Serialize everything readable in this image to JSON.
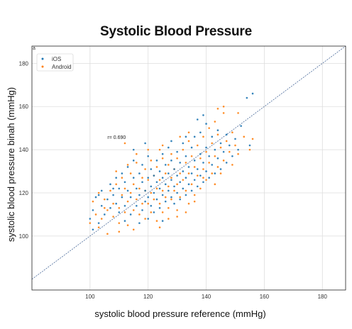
{
  "title": "Systolic Blood Pressure",
  "chart_data": {
    "type": "scatter",
    "panel_label": "a",
    "xlabel": "systolic blood pressure reference (mmHg)",
    "ylabel": "systolic blood pressure binah (mmHg)",
    "xlim": [
      80,
      188
    ],
    "ylim": [
      75,
      188
    ],
    "xticks": [
      100,
      120,
      140,
      160,
      180
    ],
    "yticks": [
      100,
      120,
      140,
      160,
      180
    ],
    "grid": true,
    "legend_position": "top-left",
    "identity_line": true,
    "annotation": "r= 0.690",
    "annotation_at": [
      106,
      145
    ],
    "series": [
      {
        "name": "iOS",
        "color": "#1f77b4",
        "points": [
          [
            100,
            108
          ],
          [
            101,
            112
          ],
          [
            101,
            103
          ],
          [
            102,
            118
          ],
          [
            103,
            106
          ],
          [
            104,
            114
          ],
          [
            104,
            121
          ],
          [
            105,
            110
          ],
          [
            106,
            117
          ],
          [
            107,
            124
          ],
          [
            107,
            113
          ],
          [
            108,
            119
          ],
          [
            109,
            127
          ],
          [
            109,
            115
          ],
          [
            110,
            122
          ],
          [
            110,
            111
          ],
          [
            111,
            129
          ],
          [
            111,
            118
          ],
          [
            112,
            125
          ],
          [
            112,
            114
          ],
          [
            113,
            121
          ],
          [
            113,
            132
          ],
          [
            114,
            118
          ],
          [
            114,
            110
          ],
          [
            115,
            127
          ],
          [
            115,
            135
          ],
          [
            116,
            122
          ],
          [
            116,
            114
          ],
          [
            117,
            129
          ],
          [
            117,
            119
          ],
          [
            118,
            133
          ],
          [
            118,
            125
          ],
          [
            118,
            112
          ],
          [
            119,
            121
          ],
          [
            119,
            116
          ],
          [
            120,
            137
          ],
          [
            120,
            127
          ],
          [
            120,
            118
          ],
          [
            120,
            108
          ],
          [
            121,
            131
          ],
          [
            121,
            123
          ],
          [
            121,
            114
          ],
          [
            122,
            128
          ],
          [
            122,
            120
          ],
          [
            122,
            111
          ],
          [
            123,
            135
          ],
          [
            123,
            125
          ],
          [
            123,
            117
          ],
          [
            124,
            130
          ],
          [
            124,
            122
          ],
          [
            124,
            113
          ],
          [
            125,
            138
          ],
          [
            125,
            127
          ],
          [
            125,
            119
          ],
          [
            126,
            133
          ],
          [
            126,
            124
          ],
          [
            126,
            116
          ],
          [
            127,
            141
          ],
          [
            127,
            129
          ],
          [
            127,
            121
          ],
          [
            128,
            135
          ],
          [
            128,
            126
          ],
          [
            128,
            118
          ],
          [
            129,
            131
          ],
          [
            129,
            123
          ],
          [
            129,
            115
          ],
          [
            130,
            139
          ],
          [
            130,
            128
          ],
          [
            130,
            120
          ],
          [
            131,
            134
          ],
          [
            131,
            125
          ],
          [
            131,
            117
          ],
          [
            132,
            143
          ],
          [
            132,
            130
          ],
          [
            132,
            122
          ],
          [
            133,
            137
          ],
          [
            133,
            127
          ],
          [
            133,
            119
          ],
          [
            134,
            132
          ],
          [
            134,
            124
          ],
          [
            135,
            141
          ],
          [
            135,
            129
          ],
          [
            135,
            121
          ],
          [
            136,
            146
          ],
          [
            136,
            135
          ],
          [
            136,
            126
          ],
          [
            137,
            131
          ],
          [
            137,
            123
          ],
          [
            138,
            148
          ],
          [
            138,
            138
          ],
          [
            138,
            128
          ],
          [
            139,
            134
          ],
          [
            139,
            125
          ],
          [
            140,
            152
          ],
          [
            140,
            141
          ],
          [
            140,
            130
          ],
          [
            141,
            137
          ],
          [
            141,
            127
          ],
          [
            142,
            146
          ],
          [
            142,
            133
          ],
          [
            143,
            140
          ],
          [
            143,
            129
          ],
          [
            144,
            149
          ],
          [
            144,
            136
          ],
          [
            145,
            143
          ],
          [
            145,
            131
          ],
          [
            146,
            139
          ],
          [
            147,
            147
          ],
          [
            147,
            134
          ],
          [
            148,
            142
          ],
          [
            149,
            137
          ],
          [
            150,
            145
          ],
          [
            151,
            140
          ],
          [
            152,
            151
          ],
          [
            154,
            164
          ],
          [
            155,
            142
          ],
          [
            156,
            166
          ],
          [
            117,
            106
          ],
          [
            112,
            107
          ],
          [
            125,
            107
          ],
          [
            108,
            122
          ],
          [
            103,
            119
          ],
          [
            115,
            140
          ],
          [
            119,
            143
          ],
          [
            128,
            144
          ],
          [
            133,
            146
          ],
          [
            137,
            154
          ],
          [
            139,
            156
          ]
        ]
      },
      {
        "name": "Android",
        "color": "#ff7f0e",
        "points": [
          [
            100,
            106
          ],
          [
            101,
            116
          ],
          [
            102,
            110
          ],
          [
            103,
            120
          ],
          [
            104,
            108
          ],
          [
            105,
            117
          ],
          [
            106,
            112
          ],
          [
            106,
            101
          ],
          [
            107,
            121
          ],
          [
            108,
            109
          ],
          [
            108,
            115
          ],
          [
            109,
            124
          ],
          [
            110,
            113
          ],
          [
            110,
            106
          ],
          [
            111,
            119
          ],
          [
            111,
            127
          ],
          [
            112,
            111
          ],
          [
            112,
            122
          ],
          [
            113,
            116
          ],
          [
            113,
            105
          ],
          [
            114,
            129
          ],
          [
            114,
            120
          ],
          [
            115,
            112
          ],
          [
            115,
            124
          ],
          [
            116,
            117
          ],
          [
            116,
            134
          ],
          [
            117,
            122
          ],
          [
            117,
            110
          ],
          [
            118,
            127
          ],
          [
            118,
            115
          ],
          [
            119,
            131
          ],
          [
            119,
            121
          ],
          [
            119,
            108
          ],
          [
            120,
            126
          ],
          [
            120,
            115
          ],
          [
            121,
            135
          ],
          [
            121,
            120
          ],
          [
            121,
            111
          ],
          [
            122,
            128
          ],
          [
            122,
            117
          ],
          [
            123,
            132
          ],
          [
            123,
            122
          ],
          [
            123,
            107
          ],
          [
            124,
            126
          ],
          [
            124,
            115
          ],
          [
            125,
            136
          ],
          [
            125,
            121
          ],
          [
            125,
            111
          ],
          [
            126,
            129
          ],
          [
            126,
            118
          ],
          [
            127,
            133
          ],
          [
            127,
            123
          ],
          [
            127,
            113
          ],
          [
            128,
            138
          ],
          [
            128,
            127
          ],
          [
            128,
            117
          ],
          [
            129,
            131
          ],
          [
            129,
            121
          ],
          [
            130,
            136
          ],
          [
            130,
            124
          ],
          [
            130,
            112
          ],
          [
            131,
            129
          ],
          [
            131,
            118
          ],
          [
            132,
            140
          ],
          [
            132,
            126
          ],
          [
            133,
            134
          ],
          [
            133,
            121
          ],
          [
            134,
            144
          ],
          [
            134,
            129
          ],
          [
            134,
            115
          ],
          [
            135,
            137
          ],
          [
            135,
            124
          ],
          [
            136,
            132
          ],
          [
            136,
            119
          ],
          [
            137,
            142
          ],
          [
            137,
            128
          ],
          [
            138,
            136
          ],
          [
            138,
            122
          ],
          [
            139,
            146
          ],
          [
            139,
            131
          ],
          [
            140,
            139
          ],
          [
            140,
            126
          ],
          [
            141,
            150
          ],
          [
            141,
            134
          ],
          [
            142,
            143
          ],
          [
            142,
            129
          ],
          [
            143,
            137
          ],
          [
            143,
            124
          ],
          [
            144,
            147
          ],
          [
            144,
            132
          ],
          [
            145,
            141
          ],
          [
            146,
            135
          ],
          [
            146,
            157
          ],
          [
            147,
            144
          ],
          [
            148,
            139
          ],
          [
            149,
            148
          ],
          [
            150,
            142
          ],
          [
            151,
            138
          ],
          [
            153,
            146
          ],
          [
            155,
            140
          ],
          [
            156,
            145
          ],
          [
            144,
            159
          ],
          [
            143,
            153
          ],
          [
            134,
            148
          ],
          [
            131,
            146
          ],
          [
            125,
            142
          ],
          [
            120,
            140
          ],
          [
            116,
            138
          ],
          [
            113,
            133
          ],
          [
            109,
            130
          ],
          [
            105,
            113
          ],
          [
            103,
            104
          ],
          [
            146,
            160
          ],
          [
            151,
            157
          ],
          [
            149,
            133
          ],
          [
            145,
            129
          ],
          [
            139,
            127
          ],
          [
            136,
            116
          ],
          [
            133,
            111
          ],
          [
            130,
            109
          ],
          [
            127,
            108
          ],
          [
            124,
            104
          ],
          [
            115,
            103
          ],
          [
            110,
            102
          ],
          [
            112,
            143
          ],
          [
            124,
            140
          ]
        ]
      }
    ]
  }
}
